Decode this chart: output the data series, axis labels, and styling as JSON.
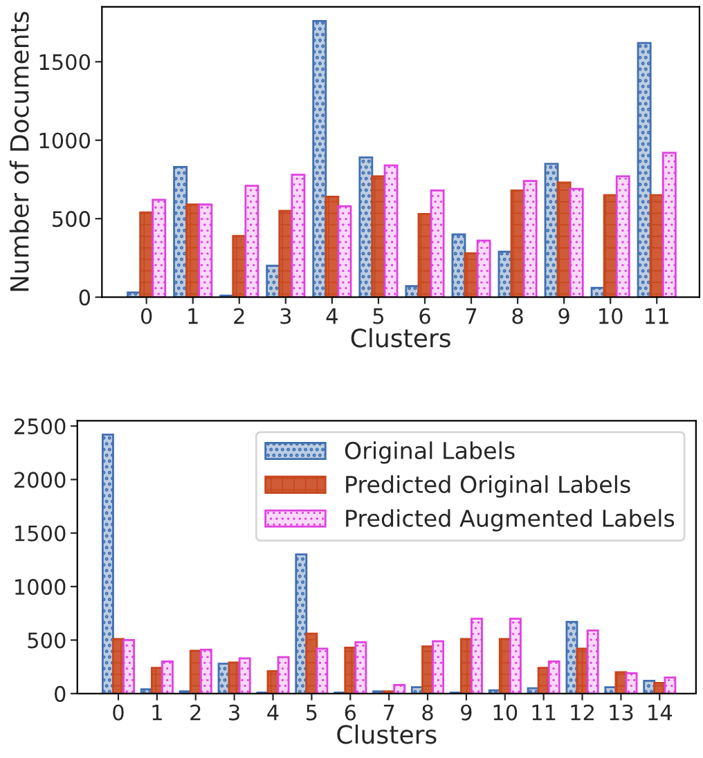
{
  "chart_data": [
    {
      "type": "bar",
      "xlabel": "Clusters",
      "ylabel": "Number of Documents",
      "categories": [
        "0",
        "1",
        "2",
        "3",
        "4",
        "5",
        "6",
        "7",
        "8",
        "9",
        "10",
        "11"
      ],
      "ylim": [
        0,
        1850
      ],
      "yticks": [
        0,
        500,
        1000,
        1500
      ],
      "grid": false,
      "legend": false,
      "series": [
        {
          "color": "#3f6fb0",
          "values": [
            30,
            830,
            10,
            200,
            1760,
            890,
            70,
            400,
            290,
            850,
            60,
            1620
          ]
        },
        {
          "color": "#c8461c",
          "values": [
            540,
            590,
            390,
            550,
            640,
            770,
            530,
            280,
            680,
            730,
            650,
            650
          ]
        },
        {
          "color": "#e040e0",
          "values": [
            620,
            590,
            710,
            780,
            580,
            840,
            680,
            360,
            740,
            690,
            770,
            920
          ]
        }
      ]
    },
    {
      "type": "bar",
      "xlabel": "Clusters",
      "categories": [
        "0",
        "1",
        "2",
        "3",
        "4",
        "5",
        "6",
        "7",
        "8",
        "9",
        "10",
        "11",
        "12",
        "13",
        "14"
      ],
      "ylim": [
        0,
        2550
      ],
      "yticks": [
        0,
        500,
        1000,
        1500,
        2000,
        2500
      ],
      "grid": false,
      "legend": "top right",
      "series": [
        {
          "name": "Original Labels",
          "color": "#3f6fb0",
          "values": [
            2420,
            40,
            20,
            280,
            10,
            1300,
            10,
            20,
            60,
            10,
            30,
            50,
            670,
            60,
            120
          ]
        },
        {
          "name": "Predicted Original Labels",
          "color": "#c8461c",
          "values": [
            510,
            240,
            400,
            290,
            210,
            560,
            430,
            20,
            440,
            510,
            510,
            240,
            420,
            200,
            100
          ]
        },
        {
          "name": "Predicted Augmented Labels",
          "color": "#e040e0",
          "values": [
            500,
            300,
            410,
            330,
            340,
            420,
            480,
            80,
            490,
            700,
            700,
            300,
            590,
            190,
            150
          ]
        }
      ]
    }
  ]
}
